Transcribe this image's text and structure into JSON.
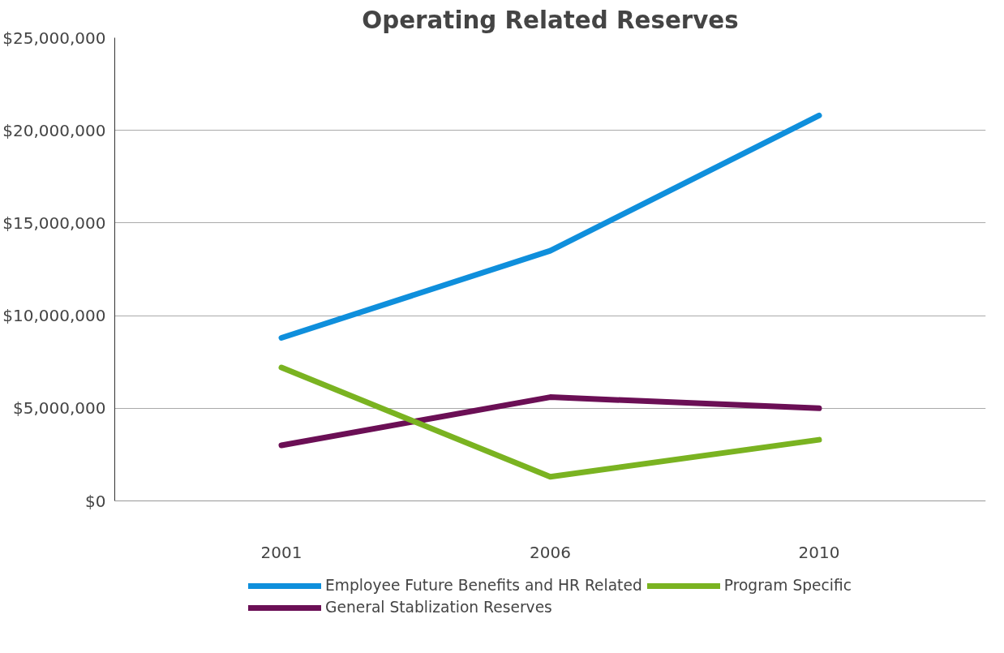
{
  "chart_data": {
    "type": "line",
    "title": "Operating Related Reserves",
    "categories": [
      "2001",
      "2006",
      "2010"
    ],
    "series": [
      {
        "name": "Employee Future Benefits and HR Related",
        "color": "#0f8fdc",
        "values": [
          8800000,
          13500000,
          20800000
        ]
      },
      {
        "name": "General Stablization Reserves",
        "color": "#6b0f55",
        "values": [
          3000000,
          5600000,
          5000000
        ]
      },
      {
        "name": "Program Specific",
        "color": "#7ab321",
        "values": [
          7200000,
          1300000,
          3300000
        ]
      }
    ],
    "ylim": [
      0,
      25000000
    ],
    "yticks": [
      {
        "value": 0,
        "label": "$0"
      },
      {
        "value": 5000000,
        "label": "$5,000,000"
      },
      {
        "value": 10000000,
        "label": "$10,000,000"
      },
      {
        "value": 15000000,
        "label": "$15,000,000"
      },
      {
        "value": 20000000,
        "label": "$20,000,000"
      },
      {
        "value": 25000000,
        "label": "$25,000,000"
      }
    ],
    "grid": "y",
    "legend": "bottom",
    "marker": "none",
    "line_style": "solid"
  }
}
